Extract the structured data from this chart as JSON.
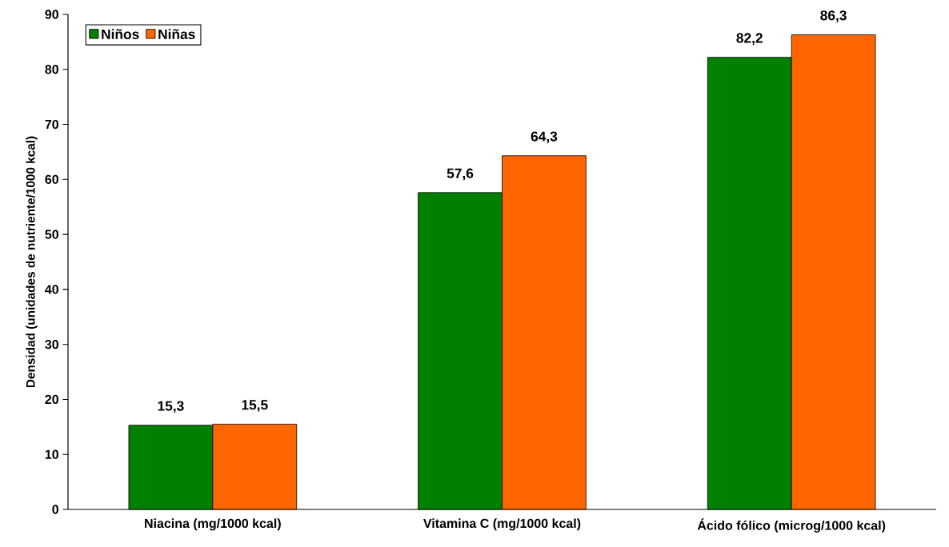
{
  "chart_data": {
    "type": "bar",
    "ylabel": "Densidad (unidades de nutriente/1000 kcal)",
    "categories": [
      "Niacina (mg/1000 kcal)",
      "Vitamina C (mg/1000 kcal)",
      "Ácido fólico (microg/1000 kcal)"
    ],
    "series": [
      {
        "name": "Niños",
        "color": "#008000",
        "values": [
          15.3,
          57.6,
          82.2
        ],
        "value_labels": [
          "15,3",
          "57,6",
          "82,2"
        ]
      },
      {
        "name": "Niñas",
        "color": "#ff6600",
        "values": [
          15.5,
          64.3,
          86.3
        ],
        "value_labels": [
          "15,5",
          "64,3",
          "86,3"
        ]
      }
    ],
    "ylim": [
      0,
      90
    ],
    "yticks": [
      0,
      10,
      20,
      30,
      40,
      50,
      60,
      70,
      80,
      90
    ],
    "grid": false,
    "legend": "top left"
  }
}
